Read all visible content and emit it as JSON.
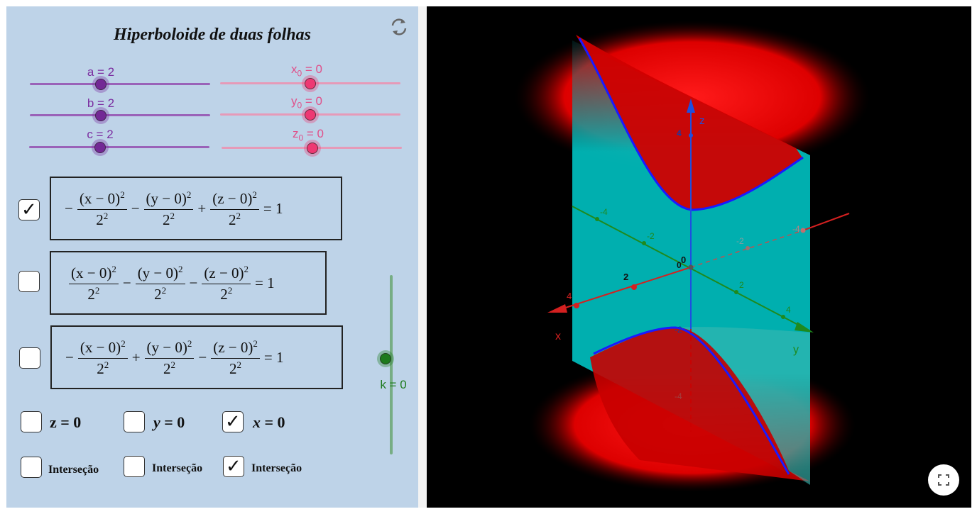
{
  "panel": {
    "title": "Hiperboloide de duas folhas",
    "refresh_icon": "refresh-icon"
  },
  "sliders": {
    "a": {
      "name": "a",
      "text": "a = 2",
      "value": 2
    },
    "b": {
      "name": "b",
      "text": "b = 2",
      "value": 2
    },
    "c": {
      "name": "c",
      "text": "c = 2",
      "value": 2
    },
    "x0": {
      "var": "x",
      "sub": "0",
      "rest": " = 0",
      "value": 0
    },
    "y0": {
      "var": "y",
      "sub": "0",
      "rest": " = 0",
      "value": 0
    },
    "z0": {
      "var": "z",
      "sub": "0",
      "rest": " = 0",
      "value": 0
    },
    "k": {
      "text": "k = 0",
      "value": 0
    }
  },
  "equations": [
    {
      "checked": true,
      "check_mark": "✓",
      "lead": "−",
      "t1_num": "(x − 0)",
      "t1_den": "2",
      "op1": "−",
      "t2_num": "(y − 0)",
      "t2_den": "2",
      "op2": "+",
      "t3_num": "(z − 0)",
      "t3_den": "2",
      "rhs": "= 1",
      "exp": "2"
    },
    {
      "checked": false,
      "lead": "",
      "t1_num": "(x − 0)",
      "t1_den": "2",
      "op1": "−",
      "t2_num": "(y − 0)",
      "t2_den": "2",
      "op2": "−",
      "t3_num": "(z − 0)",
      "t3_den": "2",
      "rhs": "= 1",
      "exp": "2"
    },
    {
      "checked": false,
      "lead": "−",
      "t1_num": "(x − 0)",
      "t1_den": "2",
      "op1": "+",
      "t2_num": "(y − 0)",
      "t2_den": "2",
      "op2": "−",
      "t3_num": "(z − 0)",
      "t3_den": "2",
      "rhs": "= 1",
      "exp": "2"
    }
  ],
  "planes": [
    {
      "var": "z",
      "rest": " = 0",
      "checked": false
    },
    {
      "var": "y",
      "rest": " = 0",
      "checked": false
    },
    {
      "var": "x",
      "rest": " = 0",
      "checked": true,
      "check_mark": "✓"
    }
  ],
  "intersections": [
    {
      "label": "Interseção",
      "checked": false
    },
    {
      "label": "Interseção",
      "checked": false
    },
    {
      "label": "Interseção",
      "checked": true,
      "check_mark": "✓"
    }
  ],
  "view3d": {
    "axis_labels": {
      "x": "x",
      "y": "y",
      "z": "z"
    },
    "ticks": {
      "z4": "4",
      "z-2": "-2",
      "z-4": "-4",
      "x2": "2",
      "x4": "4",
      "origin": "0",
      "origin2": "0",
      "y-4": "-4",
      "y-2": "-2",
      "y2": "2",
      "y4": "4",
      "xn4": "4",
      "xn2": "2",
      "yn2": "-2",
      "yn4": "-4"
    },
    "colors": {
      "surface": "#ff0000",
      "plane": "#00b4b4",
      "curve": "#1a1aff",
      "x_axis": "#d42020",
      "y_axis": "#1e8a1e",
      "z_axis": "#1e4fe0"
    },
    "fullscreen_icon": "fullscreen-icon"
  }
}
